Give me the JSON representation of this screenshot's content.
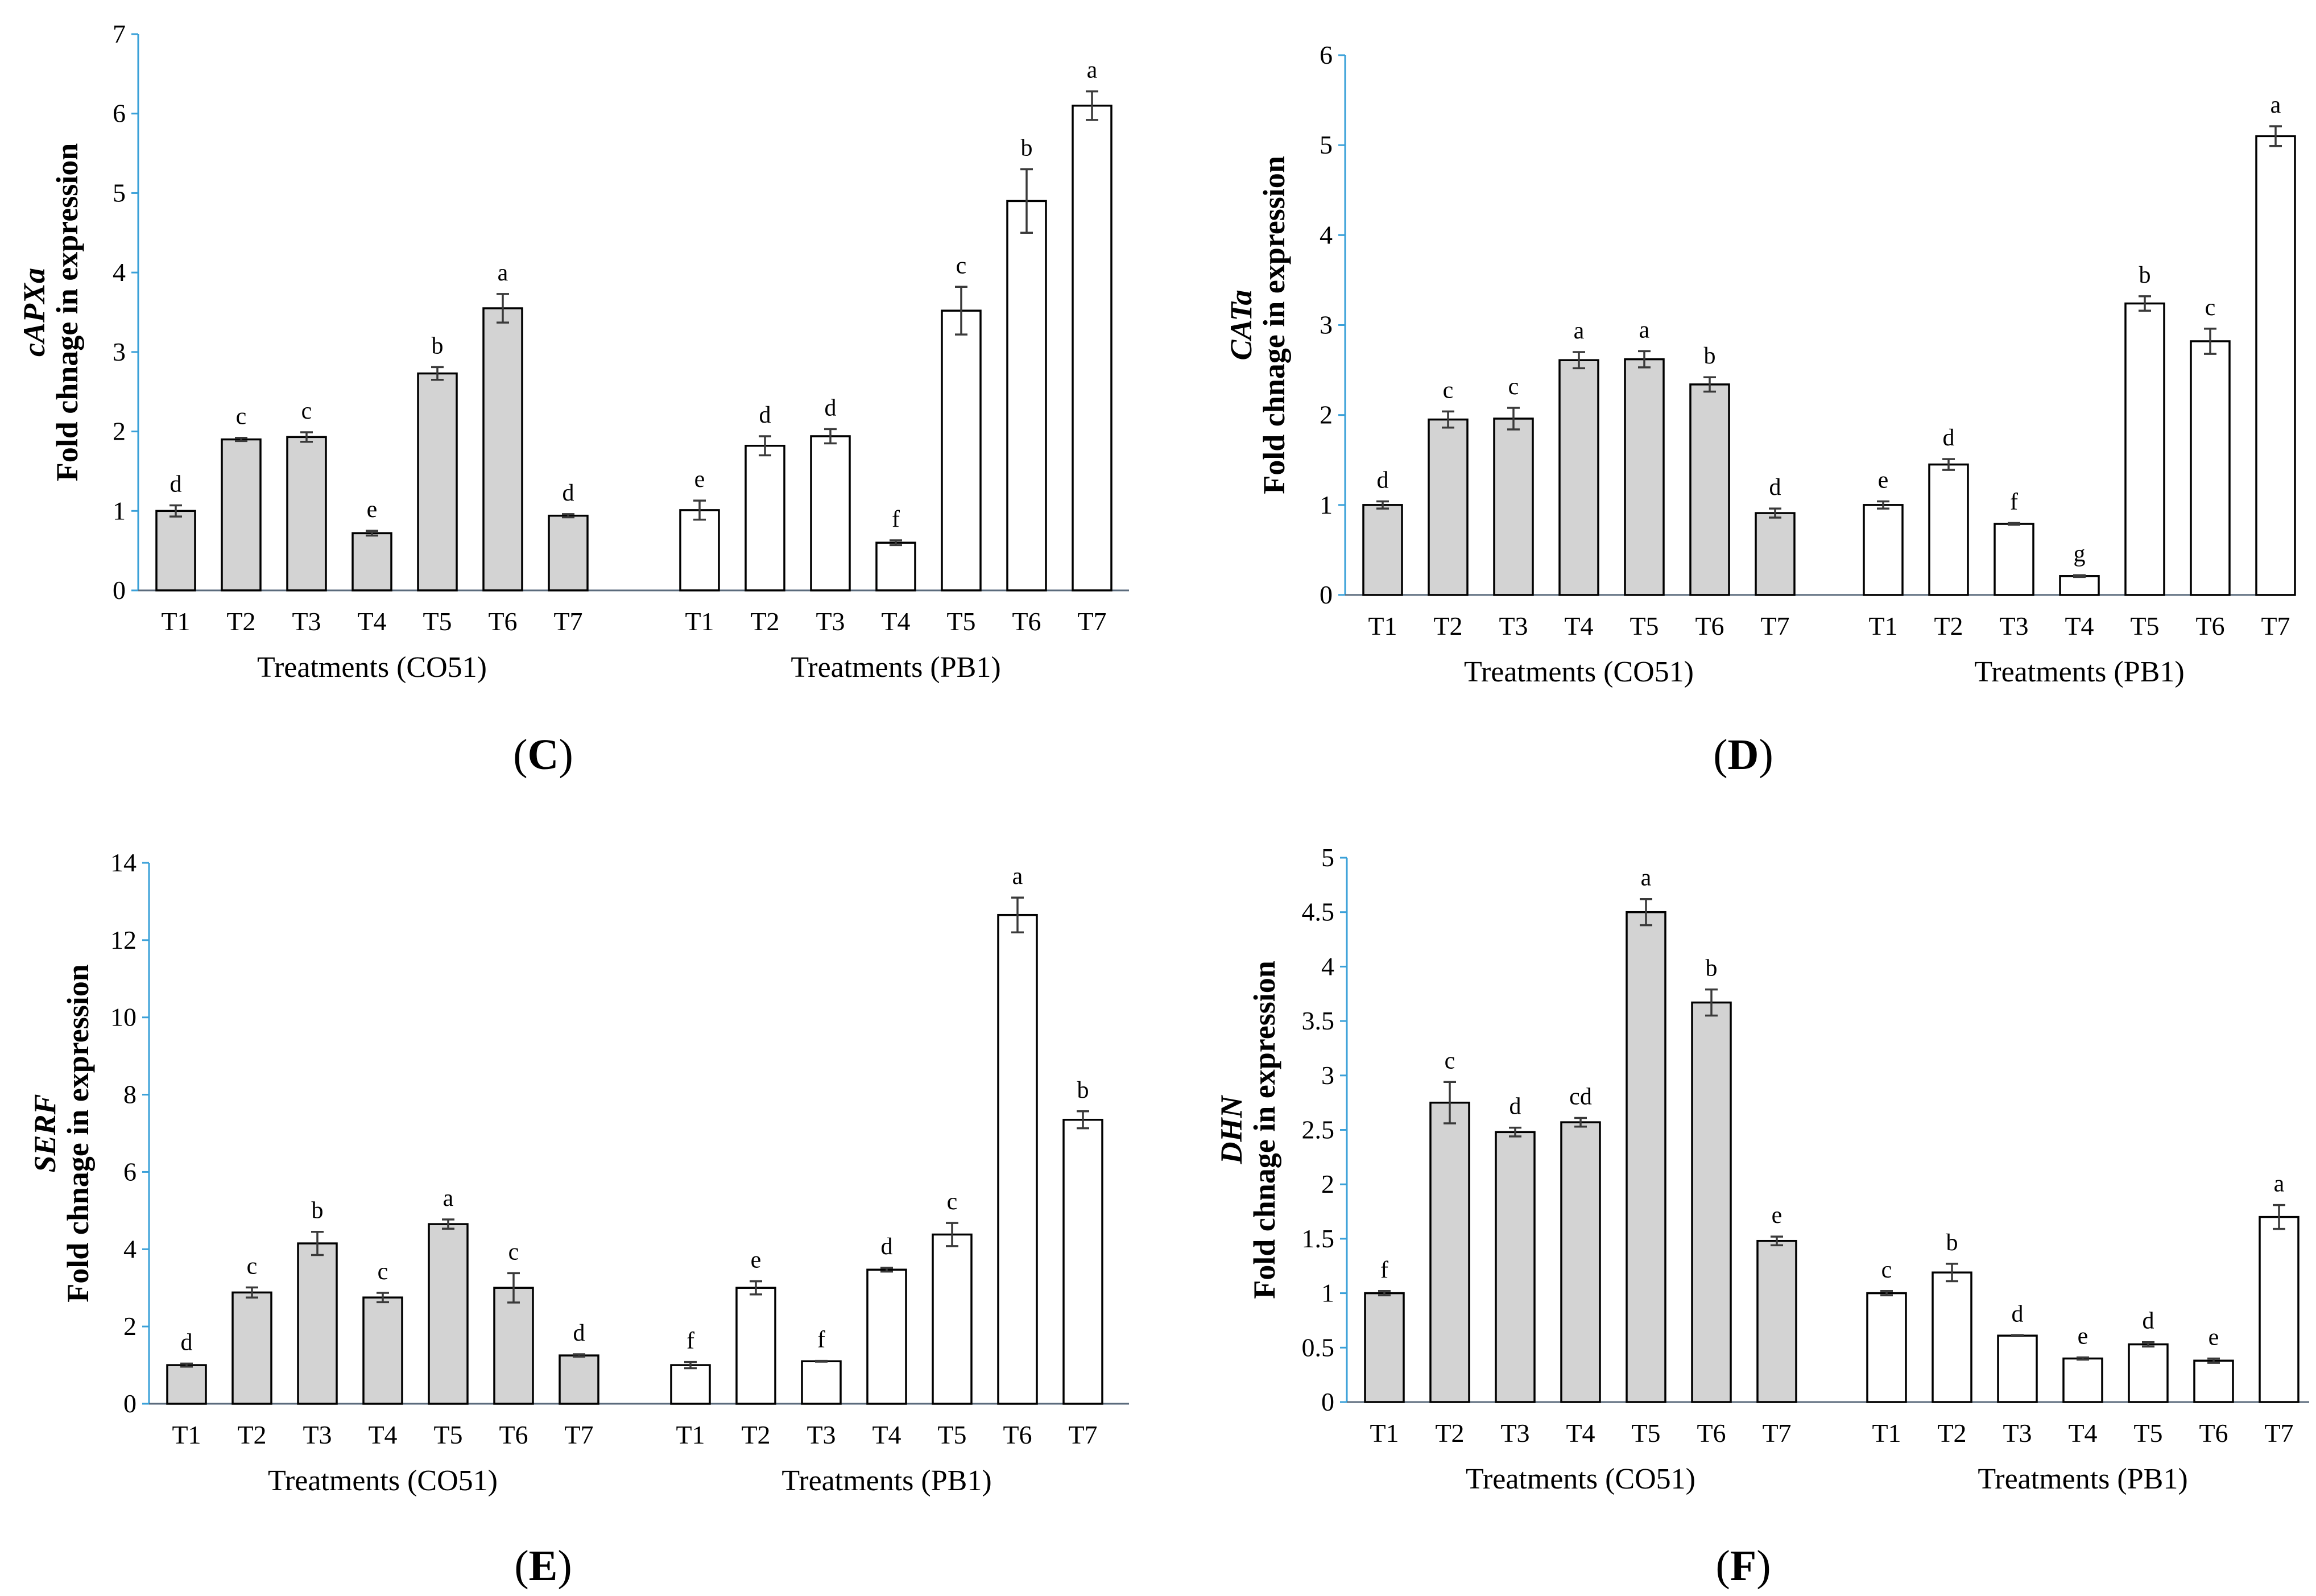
{
  "chart_data": [
    {
      "type": "bar",
      "panel": "(C)",
      "gene": "cAPXa",
      "ylabel": "Fold chnage in expression",
      "ylim": [
        0,
        7
      ],
      "yticks": [
        0,
        1,
        2,
        3,
        4,
        5,
        6,
        7
      ],
      "categories": [
        "T1",
        "T2",
        "T3",
        "T4",
        "T5",
        "T6",
        "T7"
      ],
      "series": [
        {
          "name": "Treatments (CO51)",
          "color": "#d3d3d3",
          "values": [
            1.0,
            1.9,
            1.93,
            0.72,
            2.73,
            3.55,
            0.94
          ],
          "errors": [
            0.07,
            0.02,
            0.06,
            0.03,
            0.08,
            0.18,
            0.02
          ],
          "letters": [
            "d",
            "c",
            "c",
            "e",
            "b",
            "a",
            "d"
          ]
        },
        {
          "name": "Treatments (PB1)",
          "color": "#ffffff",
          "values": [
            1.01,
            1.82,
            1.94,
            0.6,
            3.52,
            4.9,
            6.1
          ],
          "errors": [
            0.12,
            0.12,
            0.09,
            0.03,
            0.3,
            0.4,
            0.18
          ],
          "letters": [
            "e",
            "d",
            "d",
            "f",
            "c",
            "b",
            "a"
          ]
        }
      ]
    },
    {
      "type": "bar",
      "panel": "(D)",
      "gene": "CATa",
      "ylabel": "Fold chnage in expression",
      "ylim": [
        0,
        6
      ],
      "yticks": [
        0,
        1,
        2,
        3,
        4,
        5,
        6
      ],
      "categories": [
        "T1",
        "T2",
        "T3",
        "T4",
        "T5",
        "T6",
        "T7"
      ],
      "series": [
        {
          "name": "Treatments (CO51)",
          "color": "#d3d3d3",
          "values": [
            1.0,
            1.95,
            1.96,
            2.61,
            2.62,
            2.34,
            0.91
          ],
          "errors": [
            0.04,
            0.09,
            0.12,
            0.09,
            0.09,
            0.08,
            0.05
          ],
          "letters": [
            "d",
            "c",
            "c",
            "a",
            "a",
            "b",
            "d"
          ]
        },
        {
          "name": "Treatments (PB1)",
          "color": "#ffffff",
          "values": [
            1.0,
            1.45,
            0.79,
            0.21,
            3.24,
            2.82,
            5.1
          ],
          "errors": [
            0.04,
            0.06,
            0.01,
            0.01,
            0.08,
            0.14,
            0.11
          ],
          "letters": [
            "e",
            "d",
            "f",
            "g",
            "b",
            "c",
            "a"
          ]
        }
      ]
    },
    {
      "type": "bar",
      "panel": "(E)",
      "gene": "SERF",
      "ylabel": "Fold chnage in expression",
      "ylim": [
        0,
        14
      ],
      "yticks": [
        0,
        2,
        4,
        6,
        8,
        10,
        12,
        14
      ],
      "categories": [
        "T1",
        "T2",
        "T3",
        "T4",
        "T5",
        "T6",
        "T7"
      ],
      "series": [
        {
          "name": "Treatments (CO51)",
          "color": "#d3d3d3",
          "values": [
            1.0,
            2.88,
            4.15,
            2.75,
            4.65,
            3.0,
            1.25
          ],
          "errors": [
            0.04,
            0.13,
            0.3,
            0.12,
            0.12,
            0.38,
            0.03
          ],
          "letters": [
            "d",
            "c",
            "b",
            "c",
            "a",
            "c",
            "d"
          ]
        },
        {
          "name": "Treatments (PB1)",
          "color": "#ffffff",
          "values": [
            1.0,
            3.0,
            1.1,
            3.47,
            4.38,
            12.65,
            7.35
          ],
          "errors": [
            0.08,
            0.17,
            0.01,
            0.05,
            0.3,
            0.45,
            0.22
          ],
          "letters": [
            "f",
            "e",
            "f",
            "d",
            "c",
            "a",
            "b"
          ]
        }
      ]
    },
    {
      "type": "bar",
      "panel": "(F)",
      "gene": "DHN",
      "ylabel": "Fold chnage in expression",
      "ylim": [
        0,
        5
      ],
      "yticks": [
        "0",
        "0.5",
        "1",
        "1.5",
        "2",
        "2.5",
        "3",
        "3.5",
        "4",
        "4.5",
        "5"
      ],
      "categories": [
        "T1",
        "T2",
        "T3",
        "T4",
        "T5",
        "T6",
        "T7"
      ],
      "series": [
        {
          "name": "Treatments (CO51)",
          "color": "#d3d3d3",
          "values": [
            1.0,
            2.75,
            2.48,
            2.57,
            4.5,
            3.67,
            1.48
          ],
          "errors": [
            0.02,
            0.19,
            0.04,
            0.04,
            0.12,
            0.12,
            0.04
          ],
          "letters": [
            "f",
            "c",
            "d",
            "cd",
            "a",
            "b",
            "e"
          ]
        },
        {
          "name": "Treatments (PB1)",
          "color": "#ffffff",
          "values": [
            1.0,
            1.19,
            0.61,
            0.4,
            0.53,
            0.38,
            1.7
          ],
          "errors": [
            0.02,
            0.08,
            0.005,
            0.01,
            0.02,
            0.02,
            0.11
          ],
          "letters": [
            "c",
            "b",
            "d",
            "e",
            "d",
            "e",
            "a"
          ]
        }
      ]
    }
  ]
}
